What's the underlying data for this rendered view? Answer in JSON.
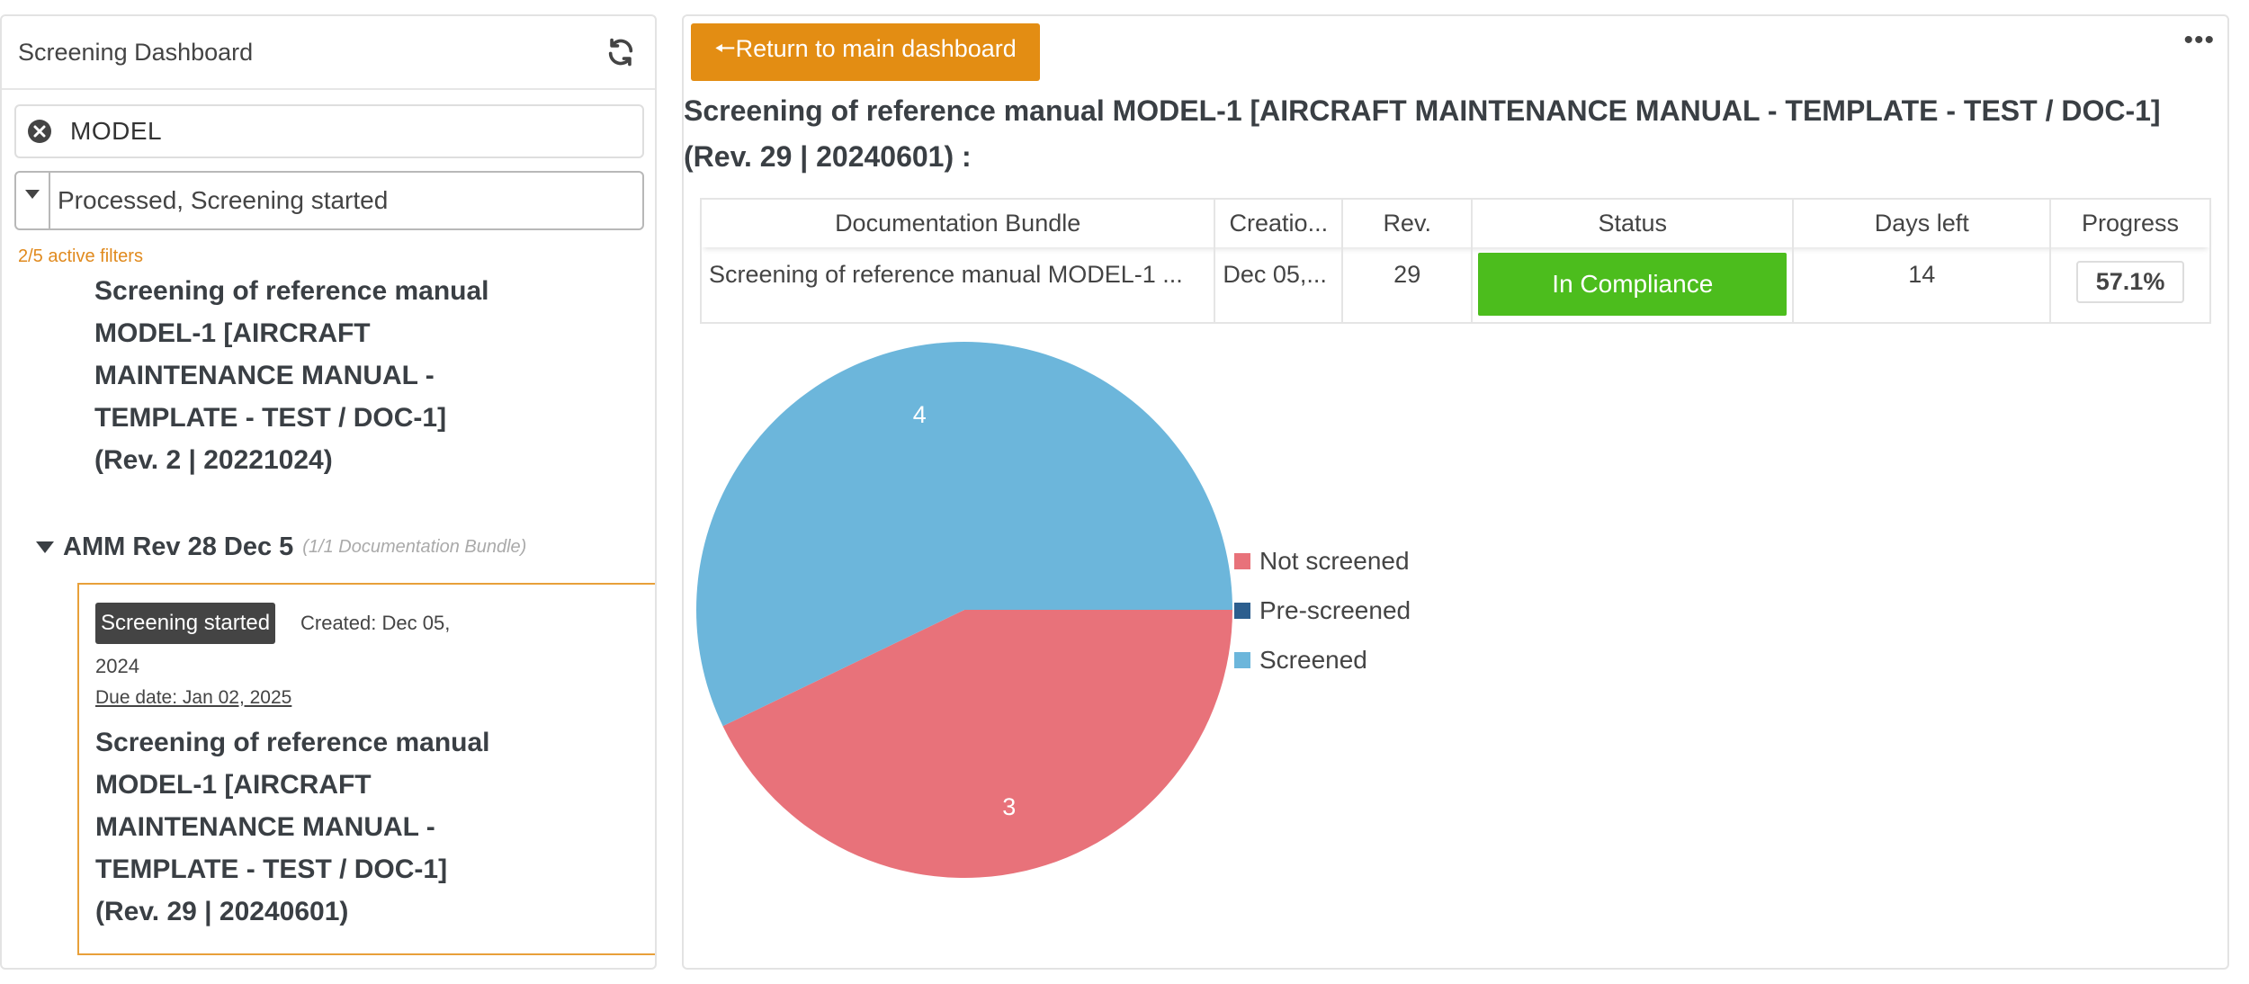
{
  "sidebar": {
    "title": "Screening Dashboard",
    "search_value": "MODEL",
    "filter_value": "Processed, Screening started",
    "active_filters": "2/5 active filters",
    "item1_lines": [
      "Screening of reference manual",
      "MODEL-1 [AIRCRAFT",
      "MAINTENANCE MANUAL -",
      "TEMPLATE - TEST / DOC-1]",
      "(Rev. 2 | 20221024)"
    ],
    "group": {
      "label": "AMM Rev 28 Dec 5",
      "count": "(1/1 Documentation Bundle)"
    },
    "card": {
      "status": "Screening started",
      "created": "Created: Dec 05,",
      "created_year": "2024",
      "due": "Due date: Jan 02, 2025",
      "title_lines": [
        "Screening of reference manual",
        "MODEL-1 [AIRCRAFT",
        "MAINTENANCE MANUAL -",
        "TEMPLATE - TEST / DOC-1]",
        "(Rev. 29 | 20240601)"
      ]
    }
  },
  "main": {
    "back_button": "🠔Return to main dashboard",
    "title_line1": "Screening of reference manual MODEL-1 [AIRCRAFT MAINTENANCE MANUAL - TEMPLATE - TEST / DOC-1]",
    "title_line2": "(Rev. 29 | 20240601) :",
    "table": {
      "headers": [
        "Documentation Bundle",
        "Creatio...",
        "Rev.",
        "Status",
        "Days left",
        "Progress"
      ],
      "row": {
        "bundle": "Screening of reference manual MODEL-1 ...",
        "created": "Dec 05,...",
        "rev": "29",
        "status": "In Compliance",
        "days_left": "14",
        "progress": "57.1%"
      }
    }
  },
  "colors": {
    "not_screened": "#e8727a",
    "pre_screened": "#2c5e8e",
    "screened": "#6cb6db",
    "accent": "#e38d13",
    "compliance": "#4cbd1d"
  },
  "chart_data": {
    "type": "pie",
    "categories": [
      "Not screened",
      "Pre-screened",
      "Screened"
    ],
    "values": [
      3,
      0,
      4
    ],
    "data_labels": [
      "3",
      "",
      "4"
    ],
    "legend": "right"
  }
}
